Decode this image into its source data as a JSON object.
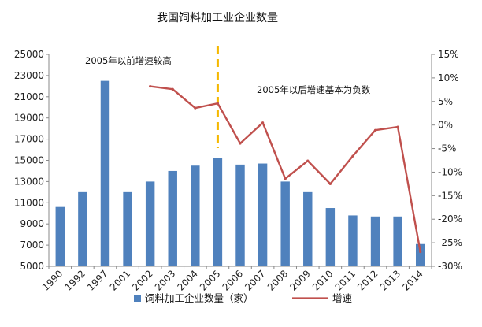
{
  "chart_data": {
    "type": "bar+line",
    "title": "我国饲料加工业企业数量",
    "categories": [
      "1990",
      "1992",
      "1997",
      "2001",
      "2002",
      "2003",
      "2004",
      "2005",
      "2006",
      "2007",
      "2008",
      "2009",
      "2010",
      "2011",
      "2012",
      "2013",
      "2014"
    ],
    "series": [
      {
        "name": "饲料加工企业数量（家）",
        "type": "bar",
        "axis": "left",
        "color": "#4F81BD",
        "values": [
          10600,
          12000,
          22500,
          12000,
          13000,
          14000,
          14500,
          15200,
          14600,
          14700,
          13000,
          12000,
          10500,
          9800,
          9700,
          9700,
          7100
        ]
      },
      {
        "name": "增速",
        "type": "line",
        "axis": "right",
        "color": "#C0504D",
        "values": [
          null,
          null,
          null,
          null,
          8.2,
          7.6,
          3.6,
          4.6,
          -3.9,
          0.5,
          -11.4,
          -7.6,
          -12.5,
          -6.6,
          -1.1,
          -0.4,
          -26.9
        ]
      }
    ],
    "left_axis": {
      "ylim": [
        5000,
        25000
      ],
      "ticks": [
        "5000",
        "7000",
        "9000",
        "11000",
        "13000",
        "15000",
        "17000",
        "19000",
        "21000",
        "23000",
        "25000"
      ]
    },
    "right_axis": {
      "ylim": [
        -30,
        15
      ],
      "ticks": [
        "-30%",
        "-25%",
        "-20%",
        "-15%",
        "-10%",
        "-5%",
        "0%",
        "5%",
        "10%",
        "15%"
      ]
    },
    "grid": false,
    "legend": "bottom",
    "marker_line": {
      "category": "2005",
      "color": "#F5B800",
      "style": "dashed"
    },
    "annotations": [
      {
        "text": "2005年以前增速较高"
      },
      {
        "text": "2005年以后增速基本为负数"
      }
    ]
  }
}
